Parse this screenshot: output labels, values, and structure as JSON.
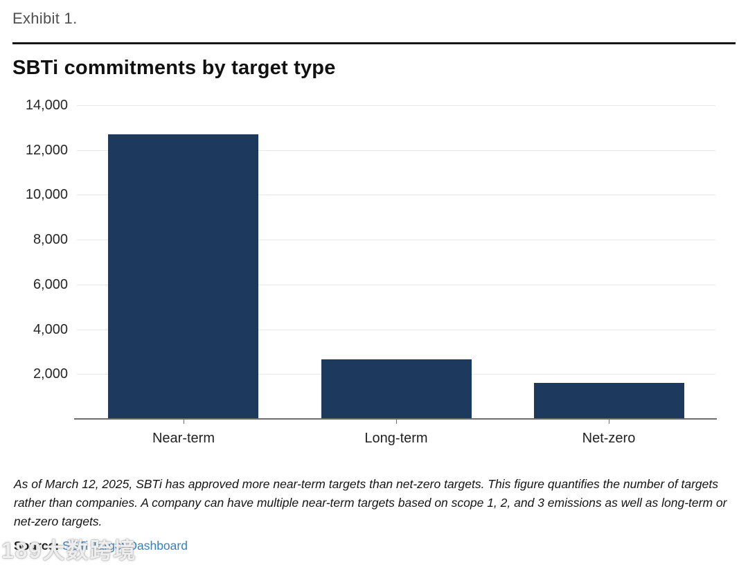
{
  "page": {
    "exhibit_label": "Exhibit 1.",
    "footnote": "As of March 12, 2025, SBTi has approved more near-term targets than net-zero targets. This figure quantifies the number of targets rather than companies. A company can have multiple near-term targets based on scope 1, 2, and 3 emissions as well as long-term or net-zero targets.",
    "source_label": "Source:",
    "source_link_text": "SBTi Target Dashboard",
    "watermark_text": "189大数跨境"
  },
  "chart_data": {
    "type": "bar",
    "title": "SBTi commitments by target type",
    "categories": [
      "Near-term",
      "Long-term",
      "Net-zero"
    ],
    "values": [
      12700,
      2650,
      1600
    ],
    "xlabel": "",
    "ylabel": "",
    "ylim": [
      0,
      14000
    ],
    "grid": true,
    "legend_position": "none",
    "bar_color": "#1d3a5e",
    "yticks": [
      {
        "value": 2000,
        "label": "2,000"
      },
      {
        "value": 4000,
        "label": "4,000"
      },
      {
        "value": 6000,
        "label": "6,000"
      },
      {
        "value": 8000,
        "label": "8,000"
      },
      {
        "value": 10000,
        "label": "10,000"
      },
      {
        "value": 12000,
        "label": "12,000"
      },
      {
        "value": 14000,
        "label": "14,000"
      }
    ]
  },
  "colors": {
    "bar": "#1d3a5e",
    "gridline": "#e8e8e8",
    "axis": "#6e6e6e",
    "link_blue": "#3580c0",
    "title_text": "#111111",
    "exhibit_text": "#4e4e4e"
  }
}
